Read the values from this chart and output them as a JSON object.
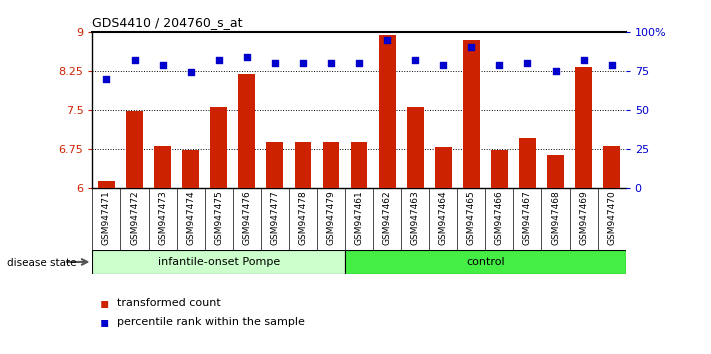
{
  "title": "GDS4410 / 204760_s_at",
  "samples": [
    "GSM947471",
    "GSM947472",
    "GSM947473",
    "GSM947474",
    "GSM947475",
    "GSM947476",
    "GSM947477",
    "GSM947478",
    "GSM947479",
    "GSM947461",
    "GSM947462",
    "GSM947463",
    "GSM947464",
    "GSM947465",
    "GSM947466",
    "GSM947467",
    "GSM947468",
    "GSM947469",
    "GSM947470"
  ],
  "transformed_count": [
    6.12,
    7.47,
    6.8,
    6.72,
    7.56,
    8.18,
    6.87,
    6.87,
    6.87,
    6.87,
    8.93,
    7.56,
    6.78,
    8.85,
    6.72,
    6.95,
    6.63,
    8.32,
    6.8
  ],
  "percentile_rank": [
    70,
    82,
    79,
    74,
    82,
    84,
    80,
    80,
    80,
    80,
    95,
    82,
    79,
    90,
    79,
    80,
    75,
    82,
    79
  ],
  "group_labels": [
    "infantile-onset Pompe",
    "control"
  ],
  "group_sizes": [
    9,
    10
  ],
  "pompe_color": "#ccffcc",
  "ctrl_color": "#44ee44",
  "bar_color": "#cc2200",
  "dot_color": "#0000cc",
  "ylim_left": [
    6,
    9
  ],
  "ylim_right": [
    0,
    100
  ],
  "yticks_left": [
    6,
    6.75,
    7.5,
    8.25,
    9
  ],
  "yticks_right": [
    0,
    25,
    50,
    75,
    100
  ],
  "ytick_labels_left": [
    "6",
    "6.75",
    "7.5",
    "8.25",
    "9"
  ],
  "ytick_labels_right": [
    "0",
    "25",
    "50",
    "75",
    "100%"
  ],
  "hlines": [
    6.75,
    7.5,
    8.25
  ],
  "legend_entries": [
    "transformed count",
    "percentile rank within the sample"
  ],
  "disease_state_label": "disease state",
  "background_color": "#ffffff",
  "plot_bg_color": "#ffffff",
  "xtick_bg_color": "#d0d0d0"
}
